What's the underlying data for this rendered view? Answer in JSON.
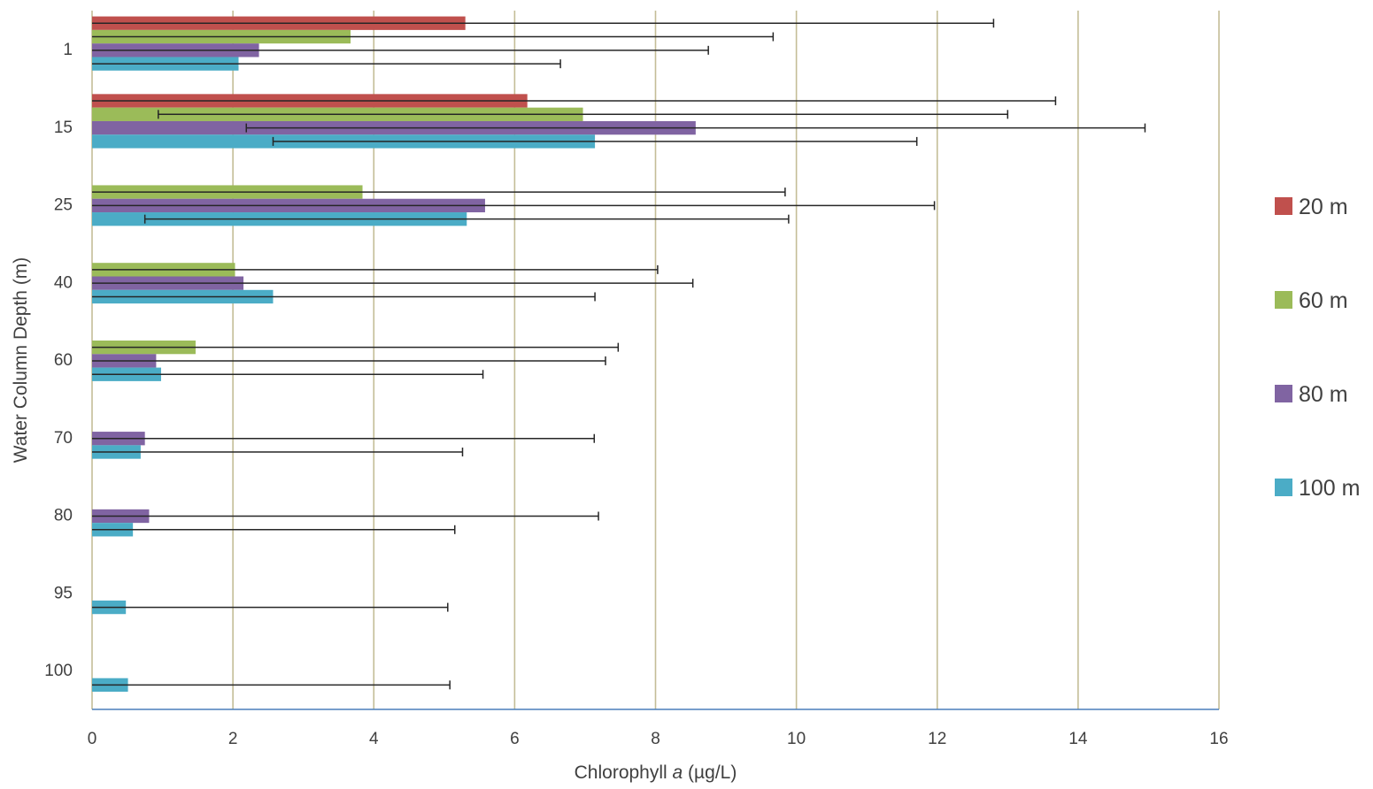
{
  "chart_data": {
    "type": "bar",
    "orientation": "horizontal",
    "title": "",
    "xlabel_prefix": "Chlorophyll ",
    "xlabel_italic": "a",
    "xlabel_suffix": " (µg/L)",
    "ylabel": "Water Column Depth (m)",
    "xlim": [
      0,
      16
    ],
    "x_ticks": [
      "0",
      "2",
      "4",
      "6",
      "8",
      "10",
      "12",
      "14",
      "16"
    ],
    "grid": "vertical",
    "legend_position": "right",
    "categories": [
      "1",
      "15",
      "25",
      "40",
      "60",
      "70",
      "80",
      "95",
      "100"
    ],
    "series": [
      {
        "name": "20 m",
        "color": "#c0504d",
        "values": [
          5.3,
          6.18,
          null,
          null,
          null,
          null,
          null,
          null,
          null
        ],
        "error": [
          7.5,
          7.5,
          null,
          null,
          null,
          null,
          null,
          null,
          null
        ]
      },
      {
        "name": "60 m",
        "color": "#9bbb59",
        "values": [
          3.67,
          6.97,
          3.84,
          2.03,
          1.47,
          null,
          null,
          null,
          null
        ],
        "error": [
          6.0,
          6.03,
          6.0,
          6.0,
          6.0,
          null,
          null,
          null,
          null
        ]
      },
      {
        "name": "80 m",
        "color": "#8064a2",
        "values": [
          2.37,
          8.57,
          5.58,
          2.15,
          0.91,
          0.75,
          0.81,
          null,
          null
        ],
        "error": [
          6.38,
          6.38,
          6.38,
          6.38,
          6.38,
          6.38,
          6.38,
          null,
          null
        ]
      },
      {
        "name": "100 m",
        "color": "#4bacc6",
        "values": [
          2.08,
          7.14,
          5.32,
          2.57,
          0.98,
          0.69,
          0.58,
          0.48,
          0.51
        ],
        "error": [
          4.57,
          4.57,
          4.57,
          4.57,
          4.57,
          4.57,
          4.57,
          4.57,
          4.57
        ]
      }
    ]
  }
}
